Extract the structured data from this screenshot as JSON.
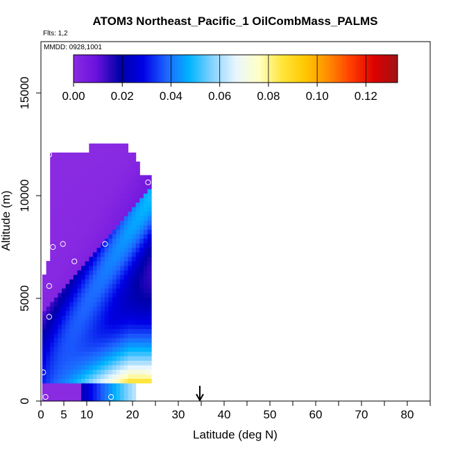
{
  "chart_data": {
    "type": "heatmap",
    "title": "ATOM3 Northeast_Pacific_1 OilCombMass_PALMS",
    "subtitle_flights": "Flts: 1,2",
    "subtitle_dates": "MMDD: 0928,1001",
    "xlabel": "Latitude (deg N)",
    "ylabel": "Altitude (m)",
    "xlim": [
      0,
      85
    ],
    "ylim": [
      0,
      17500
    ],
    "x_ticks": [
      0,
      5,
      10,
      20,
      30,
      40,
      50,
      60,
      70,
      80
    ],
    "x_tick_labels": [
      "0",
      "5",
      "10",
      "20",
      "30",
      "40",
      "50",
      "60",
      "70",
      "80"
    ],
    "y_ticks": [
      0,
      5000,
      10000,
      15000
    ],
    "y_tick_labels": [
      "0",
      "5000",
      "10000",
      "15000"
    ],
    "colorbar": {
      "range": [
        0,
        0.133
      ],
      "ticks": [
        0.0,
        0.02,
        0.04,
        0.06,
        0.08,
        0.1,
        0.12
      ],
      "tick_labels": [
        "0.00",
        "0.02",
        "0.04",
        "0.06",
        "0.08",
        "0.10",
        "0.12"
      ],
      "colors": [
        "#8a2be2",
        "#6a11dd",
        "#0000a8",
        "#0000e6",
        "#1e64ff",
        "#00b4ff",
        "#87d2ff",
        "#e8f6ff",
        "#ffffc8",
        "#ffe63c",
        "#ffc800",
        "#ff8c00",
        "#ff3c00",
        "#dc0000",
        "#a01414"
      ]
    },
    "arrow_latitude": 34.7,
    "field_extent": {
      "lat_min": 0.3,
      "lat_max": 23.5,
      "alt_max": 13000
    },
    "sample_points": [
      {
        "lat": 1.0,
        "alt": 200
      },
      {
        "lat": 15.3,
        "alt": 200
      },
      {
        "lat": 0.5,
        "alt": 1400
      },
      {
        "lat": 23.5,
        "alt": 1400
      },
      {
        "lat": 1.8,
        "alt": 4100
      },
      {
        "lat": 1.8,
        "alt": 5600
      },
      {
        "lat": 7.3,
        "alt": 6800
      },
      {
        "lat": 2.6,
        "alt": 7500
      },
      {
        "lat": 4.8,
        "alt": 7650
      },
      {
        "lat": 14.0,
        "alt": 7650
      },
      {
        "lat": 23.4,
        "alt": 10650
      },
      {
        "lat": 1.8,
        "alt": 12000
      },
      {
        "lat": 19.5,
        "alt": 12700
      }
    ]
  }
}
